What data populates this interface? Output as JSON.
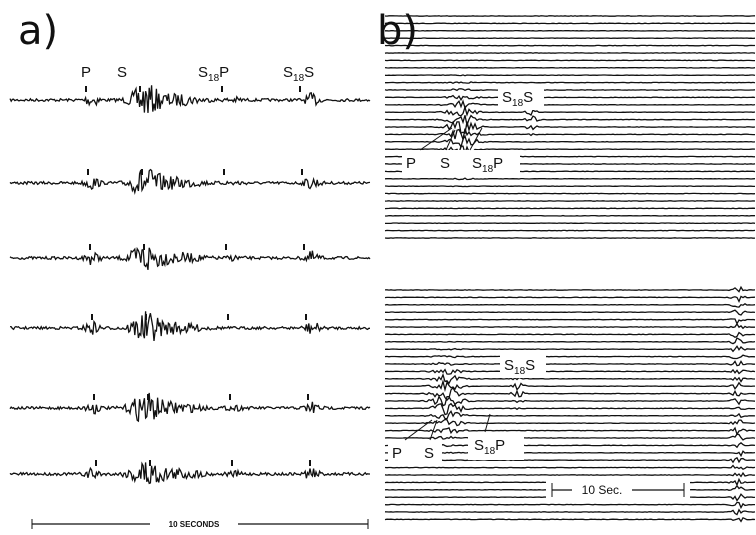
{
  "panel_a": {
    "label": "a)",
    "phases": {
      "p": "P",
      "s": "S",
      "s18p": {
        "base": "S",
        "sub": "18",
        "tail": "P"
      },
      "s18s": {
        "base": "S",
        "sub": "18",
        "tail": "S"
      }
    },
    "scale_bar": "10 SECONDS"
  },
  "panel_b": {
    "label": "b)",
    "top": {
      "s18s": {
        "base": "S",
        "sub": "18",
        "tail": "S"
      },
      "p": "P",
      "s": "S",
      "s18p": {
        "base": "S",
        "sub": "18",
        "tail": "P"
      }
    },
    "bottom": {
      "s18s": {
        "base": "S",
        "sub": "18",
        "tail": "S"
      },
      "p": "P",
      "s": "S",
      "s18p": {
        "base": "S",
        "sub": "18",
        "tail": "P"
      }
    },
    "scale_bar": "10 Sec."
  }
}
